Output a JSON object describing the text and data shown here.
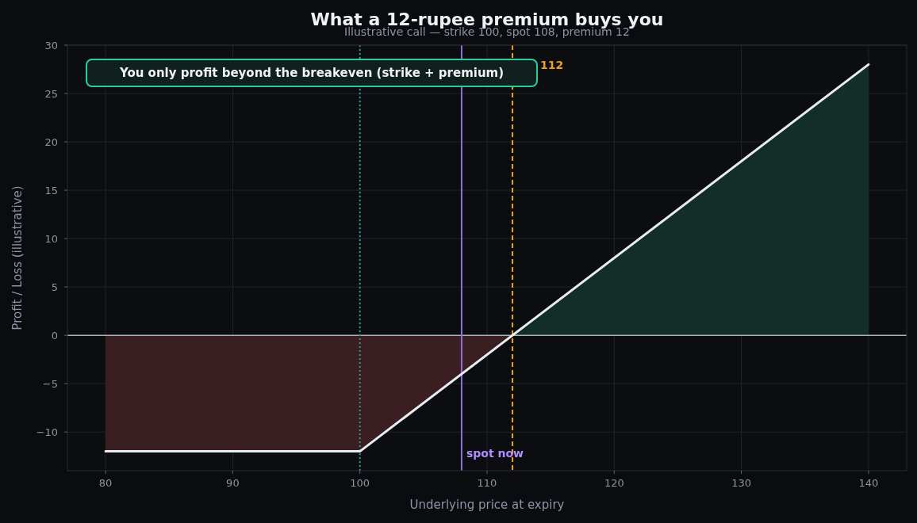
{
  "chart_data": {
    "type": "line",
    "title": "What a 12-rupee premium buys you",
    "subtitle": "Illustrative call — strike 100, spot 108, premium 12",
    "xlabel": "Underlying price at expiry",
    "ylabel": "Profit / Loss (illustrative)",
    "series": [
      {
        "type": "area",
        "color": "#3a1e22",
        "x": [
          80,
          100,
          112
        ],
        "values": [
          -12,
          -12,
          0
        ]
      },
      {
        "type": "area",
        "color": "#132d28",
        "x": [
          112,
          140
        ],
        "values": [
          0,
          28
        ]
      },
      {
        "color": "#e8edf2",
        "x": [
          80,
          100,
          140
        ],
        "values": [
          -12,
          -12,
          28
        ]
      }
    ],
    "xlim": [
      77,
      143
    ],
    "xticks": [
      80,
      90,
      100,
      110,
      120,
      130,
      140
    ],
    "ylim": [
      -14,
      30
    ],
    "yticks": [
      -10,
      -5,
      0,
      5,
      10,
      15,
      20,
      25,
      30
    ],
    "grid": true,
    "marker": "none",
    "line_style": "solid",
    "ref_lines": [
      {
        "axis": "y",
        "value": 0,
        "color": "#a9b2bd",
        "line_style": "solid"
      },
      {
        "axis": "x",
        "value": 100,
        "color": "#2a9d8f",
        "line_style": "dotted"
      },
      {
        "axis": "x",
        "value": 108,
        "label": "spot now",
        "color": "#8f72d6",
        "line_style": "solid"
      },
      {
        "axis": "x",
        "value": 112,
        "label": "112",
        "color": "#f0a020",
        "line_style": "dashed"
      }
    ],
    "annotations": [
      "You only profit beyond the breakeven (strike + premium)"
    ]
  }
}
